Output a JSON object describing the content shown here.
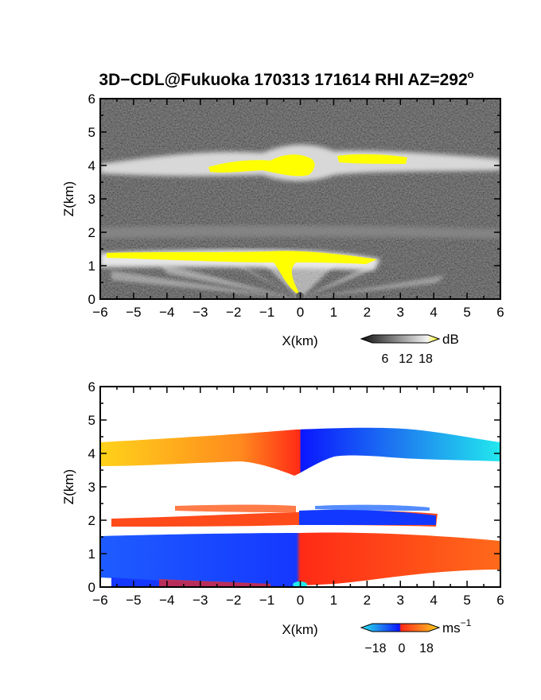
{
  "title": {
    "main": "3D−CDL@Fukuoka 170313 171614 RHI AZ=292",
    "degree_mark": "o"
  },
  "colors": {
    "reflectivity_max": "#ffff00",
    "velocity_neg": "#0033ff",
    "velocity_zero": "#ff3b1f",
    "velocity_pos": "#ffd21a",
    "velocity_cyan": "#22e8ee"
  },
  "chart_data": [
    {
      "type": "heatmap",
      "name": "reflectivity",
      "xlabel": "X(km)",
      "ylabel": "Z(km)",
      "xlim": [
        -6,
        6
      ],
      "ylim": [
        0,
        6
      ],
      "x_ticks": [
        "−6",
        "−5",
        "−4",
        "−3",
        "−2",
        "−1",
        "0",
        "1",
        "2",
        "3",
        "4",
        "5",
        "6"
      ],
      "y_ticks": [
        "0",
        "1",
        "2",
        "3",
        "4",
        "5",
        "6"
      ],
      "colorbar": {
        "unit": "dB",
        "ticks": [
          "6",
          "12",
          "18"
        ],
        "range": [
          0,
          18
        ]
      },
      "layers": [
        {
          "label": "cloud layer",
          "z": 4.1,
          "x_range": [
            -6,
            6
          ],
          "intensity": "high"
        },
        {
          "label": "mid-level band",
          "z": 1.9,
          "x_range": [
            -6,
            6
          ],
          "intensity": "medium"
        },
        {
          "label": "boundary layer",
          "z": 1.2,
          "x_range": [
            -6,
            2.4
          ],
          "intensity": "high"
        }
      ]
    },
    {
      "type": "heatmap",
      "name": "doppler_velocity",
      "xlabel": "X(km)",
      "ylabel": "Z(km)",
      "xlim": [
        -6,
        6
      ],
      "ylim": [
        0,
        6
      ],
      "x_ticks": [
        "−6",
        "−5",
        "−4",
        "−3",
        "−2",
        "−1",
        "0",
        "1",
        "2",
        "3",
        "4",
        "5",
        "6"
      ],
      "y_ticks": [
        "0",
        "1",
        "2",
        "3",
        "4",
        "5",
        "6"
      ],
      "colorbar": {
        "unit": "ms",
        "unit_exponent": "−1",
        "ticks": [
          "−18",
          "0",
          "18"
        ],
        "range": [
          -18,
          18
        ]
      },
      "layers": [
        {
          "label": "upper layer",
          "z_range": [
            3.5,
            4.8
          ],
          "left_velocity": 14,
          "right_velocity": -13
        },
        {
          "label": "middle band",
          "z_range": [
            1.8,
            2.4
          ],
          "left_velocity": 3,
          "right_velocity": -12
        },
        {
          "label": "lower layer",
          "z_range": [
            0.05,
            1.6
          ],
          "left_velocity": -12,
          "right_velocity": 4
        }
      ]
    }
  ]
}
